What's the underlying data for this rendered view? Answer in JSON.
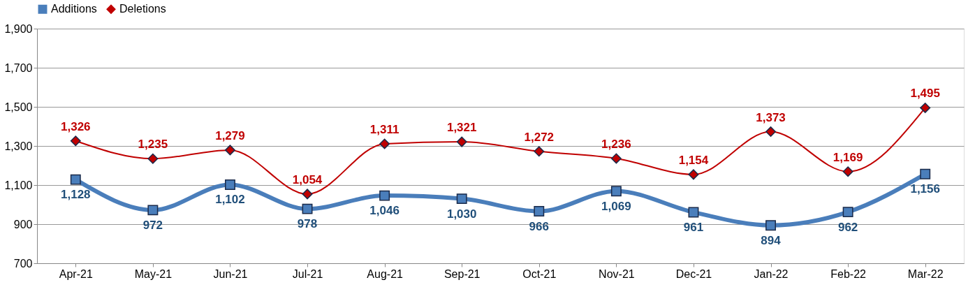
{
  "chart_data": {
    "type": "line",
    "categories": [
      "Apr-21",
      "May-21",
      "Jun-21",
      "Jul-21",
      "Aug-21",
      "Sep-21",
      "Oct-21",
      "Nov-21",
      "Dec-21",
      "Jan-22",
      "Feb-22",
      "Mar-22"
    ],
    "series": [
      {
        "name": "Additions",
        "color": "#4a7ebb",
        "marker": "square",
        "values": [
          1128,
          972,
          1102,
          978,
          1046,
          1030,
          966,
          1069,
          961,
          894,
          962,
          1156
        ],
        "value_labels": [
          "1,128",
          "972",
          "1,102",
          "978",
          "1,046",
          "1,030",
          "966",
          "1,069",
          "961",
          "894",
          "962",
          "1,156"
        ]
      },
      {
        "name": "Deletions",
        "color": "#c00000",
        "marker": "diamond",
        "values": [
          1326,
          1235,
          1279,
          1054,
          1311,
          1321,
          1272,
          1236,
          1154,
          1373,
          1169,
          1495
        ],
        "value_labels": [
          "1,326",
          "1,235",
          "1,279",
          "1,054",
          "1,311",
          "1,321",
          "1,272",
          "1,236",
          "1,154",
          "1,373",
          "1,169",
          "1,495"
        ]
      }
    ],
    "ylim": [
      700,
      1900
    ],
    "yticks": [
      {
        "value": 700,
        "label": "700"
      },
      {
        "value": 900,
        "label": "900"
      },
      {
        "value": 1100,
        "label": "1,100"
      },
      {
        "value": 1300,
        "label": "1,300"
      },
      {
        "value": 1500,
        "label": "1,500"
      },
      {
        "value": 1700,
        "label": "1,700"
      },
      {
        "value": 1900,
        "label": "1,900"
      }
    ],
    "grid": "y",
    "legend": "top",
    "line_style": "solid"
  }
}
